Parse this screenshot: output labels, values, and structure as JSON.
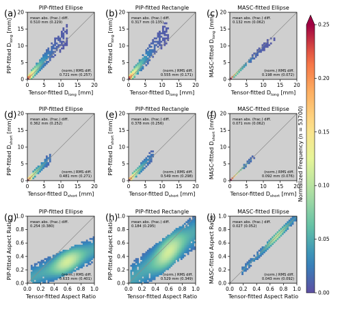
{
  "figure": {
    "colorbar": {
      "label": "Normalized Frequency (n = 53700)",
      "ticks": [
        0.0,
        0.05,
        0.1,
        0.15,
        0.2,
        0.25
      ],
      "tick_labels": [
        "0.00",
        "0.05",
        "0.10",
        "0.15",
        "0.20",
        "0.25"
      ],
      "range": [
        0,
        0.25
      ],
      "colormap": "spectral_r"
    },
    "colors": {
      "panel_background": "#cfcfcf",
      "one_to_one_line": "#8a8a8a",
      "low_density": "#5e4fa2",
      "high_density": "#9e0142"
    }
  },
  "chart_data": [
    {
      "type": "heatmap",
      "letter": "(a)",
      "title": "PIP-fitted Ellipse",
      "xlabel": "Tensor-fitted D",
      "xlabel_sub": "long",
      "xlabel_unit": " [mm]",
      "ylabel": "PIP-fitted D",
      "ylabel_sub": "long",
      "ylabel_unit": " [mm]",
      "xlim": [
        0,
        20
      ],
      "ylim": [
        0,
        20
      ],
      "xticks": [
        0,
        5,
        10,
        15,
        20
      ],
      "yticks": [
        0,
        5,
        10,
        15,
        20
      ],
      "stats_top_label": "mean abs. (frac.) diff.",
      "stats_top_value": "0.510 mm (0.229)",
      "stats_bottom_label": "(norm.) RMS diff.",
      "stats_bottom_value": "0.721 mm (0.257)",
      "density": {
        "center": [
          [
            0,
            0
          ],
          [
            10,
            12
          ]
        ],
        "spread": 1.8,
        "slope": 1.15
      }
    },
    {
      "type": "heatmap",
      "letter": "(b)",
      "title": "PIP-fitted Rectangle",
      "xlabel": "Tensor-fitted D",
      "xlabel_sub": "long",
      "xlabel_unit": " [mm]",
      "ylabel": "PIP-fitted D",
      "ylabel_sub": "long",
      "ylabel_unit": " [mm]",
      "xlim": [
        0,
        20
      ],
      "ylim": [
        0,
        20
      ],
      "xticks": [
        0,
        5,
        10,
        15,
        20
      ],
      "yticks": [
        0,
        5,
        10,
        15,
        20
      ],
      "stats_top_label": "mean abs. (frac.) diff.",
      "stats_top_value": "0.317 mm (0.135)",
      "stats_bottom_label": "(norm.) RMS diff.",
      "stats_bottom_value": "0.555 mm (0.171)",
      "density": {
        "center": [
          [
            0,
            0
          ],
          [
            10,
            13
          ]
        ],
        "spread": 1.9,
        "slope": 1.25
      }
    },
    {
      "type": "heatmap",
      "letter": "(c)",
      "title": "MASC-fitted Ellipse",
      "xlabel": "Tensor-fitted D",
      "xlabel_sub": "long",
      "xlabel_unit": " [mm]",
      "ylabel": "MASC-fitted D",
      "ylabel_sub": "long",
      "ylabel_unit": " [mm]",
      "xlim": [
        0,
        20
      ],
      "ylim": [
        0,
        20
      ],
      "xticks": [
        0,
        5,
        10,
        15,
        20
      ],
      "yticks": [
        0,
        5,
        10,
        15,
        20
      ],
      "stats_top_label": "mean abs. (frac.) diff.",
      "stats_top_value": "0.132 mm (0.062)",
      "stats_bottom_label": "(norm.) RMS diff.",
      "stats_bottom_value": "0.198 mm (0.072)",
      "density": {
        "center": [
          [
            0,
            0
          ],
          [
            13,
            12
          ]
        ],
        "spread": 0.6,
        "slope": 0.95
      }
    },
    {
      "type": "heatmap",
      "letter": "(d)",
      "title": "PIP-fitted Ellipse",
      "xlabel": "Tensor-fitted D",
      "xlabel_sub": "short",
      "xlabel_unit": " [mm]",
      "ylabel": "PIP-fitted D",
      "ylabel_sub": "short",
      "ylabel_unit": " [mm]",
      "xlim": [
        0,
        20
      ],
      "ylim": [
        0,
        20
      ],
      "xticks": [
        0,
        5,
        10,
        15,
        20
      ],
      "yticks": [
        0,
        5,
        10,
        15,
        20
      ],
      "stats_top_label": "mean abs. (frac.) diff.",
      "stats_top_value": "0.362 mm (0.252)",
      "stats_bottom_label": "(norm.) RMS diff.",
      "stats_bottom_value": "0.481 mm (0.271)",
      "density": {
        "center": [
          [
            0,
            0
          ],
          [
            6,
            6
          ]
        ],
        "spread": 1.2,
        "slope": 1.0
      }
    },
    {
      "type": "heatmap",
      "letter": "(e)",
      "title": "PIP-fitted Rectangle",
      "xlabel": "Tensor-fitted D",
      "xlabel_sub": "short",
      "xlabel_unit": " [mm]",
      "ylabel": "PIP-fitted D",
      "ylabel_sub": "short",
      "ylabel_unit": " [mm]",
      "xlim": [
        0,
        20
      ],
      "ylim": [
        0,
        20
      ],
      "xticks": [
        0,
        5,
        10,
        15,
        20
      ],
      "yticks": [
        0,
        5,
        10,
        15,
        20
      ],
      "stats_top_label": "mean abs. (frac.) diff.",
      "stats_top_value": "0.378 mm (0.256)",
      "stats_bottom_label": "(norm.) RMS diff.",
      "stats_bottom_value": "0.549 mm (0.298)",
      "density": {
        "center": [
          [
            0,
            0
          ],
          [
            6,
            6.5
          ]
        ],
        "spread": 1.3,
        "slope": 1.05
      }
    },
    {
      "type": "heatmap",
      "letter": "(f)",
      "title": "MASC-fitted Ellipse",
      "xlabel": "Tensor-fitted D",
      "xlabel_sub": "short",
      "xlabel_unit": " [mm]",
      "ylabel": "MASC-fitted D",
      "ylabel_sub": "short",
      "ylabel_unit": " [mm]",
      "xlim": [
        0,
        20
      ],
      "ylim": [
        0,
        20
      ],
      "xticks": [
        0,
        5,
        10,
        15,
        20
      ],
      "yticks": [
        0,
        5,
        10,
        15,
        20
      ],
      "stats_top_label": "mean abs. (frac.) diff.",
      "stats_top_value": "0.071 mm (0.062)",
      "stats_bottom_label": "(norm.) RMS diff.",
      "stats_bottom_value": "0.092 mm (0.076)",
      "density": {
        "center": [
          [
            0,
            0
          ],
          [
            7,
            7
          ]
        ],
        "spread": 0.45,
        "slope": 1.0
      }
    },
    {
      "type": "heatmap",
      "letter": "(g)",
      "title": "PIP-fitted Ellipse",
      "xlabel": "Tensor-fitted Aspect Ratio",
      "xlabel_sub": "",
      "xlabel_unit": "",
      "ylabel": "PIP-fitted Aspect Ratio",
      "ylabel_sub": "",
      "ylabel_unit": "",
      "xlim": [
        0,
        1
      ],
      "ylim": [
        0,
        1
      ],
      "xticks": [
        0.0,
        0.2,
        0.4,
        0.6,
        0.8,
        1.0
      ],
      "yticks": [
        0.0,
        0.2,
        0.4,
        0.6,
        0.8,
        1.0
      ],
      "stats_top_label": "mean abs. (frac.) diff.",
      "stats_top_value": "0.254 (0.380)",
      "stats_bottom_label": "(norm.) RMS diff.",
      "stats_bottom_value": "0.633 mm (0.401)",
      "density": {
        "center": [
          [
            0.1,
            0.1
          ],
          [
            1.0,
            0.5
          ]
        ],
        "spread": 0.12,
        "slope": 0.45
      }
    },
    {
      "type": "heatmap",
      "letter": "(h)",
      "title": "PIP-fitted Rectangle",
      "xlabel": "Tensor-fitted Aspect Ratio",
      "xlabel_sub": "",
      "xlabel_unit": "",
      "ylabel": "PIP-fitted Aspect Ratio",
      "ylabel_sub": "",
      "ylabel_unit": "",
      "xlim": [
        0,
        1
      ],
      "ylim": [
        0,
        1
      ],
      "xticks": [
        0.0,
        0.2,
        0.4,
        0.6,
        0.8,
        1.0
      ],
      "yticks": [
        0.0,
        0.2,
        0.4,
        0.6,
        0.8,
        1.0
      ],
      "stats_top_label": "mean abs. (frac.) diff.",
      "stats_top_value": "0.184 (0.295)",
      "stats_bottom_label": "(norm.) RMS diff.",
      "stats_bottom_value": "0.529 mm (0.349)",
      "density": {
        "center": [
          [
            0.1,
            0.1
          ],
          [
            1.0,
            0.8
          ]
        ],
        "spread": 0.16,
        "slope": 0.75
      }
    },
    {
      "type": "heatmap",
      "letter": "(i)",
      "title": "MASC-fitted Ellipse",
      "xlabel": "Tensor-fitted Aspect Ratio",
      "xlabel_sub": "",
      "xlabel_unit": "",
      "ylabel": "MASC-fitted Aspect Ratio",
      "ylabel_sub": "",
      "ylabel_unit": "",
      "xlim": [
        0,
        1
      ],
      "ylim": [
        0,
        1
      ],
      "xticks": [
        0.0,
        0.2,
        0.4,
        0.6,
        0.8,
        1.0
      ],
      "yticks": [
        0.0,
        0.2,
        0.4,
        0.6,
        0.8,
        1.0
      ],
      "stats_top_label": "mean abs. (frac.) diff.",
      "stats_top_value": "0.027 (0.052)",
      "stats_bottom_label": "(norm.) RMS diff.",
      "stats_bottom_value": "0.043 mm (0.092)",
      "density": {
        "center": [
          [
            0.2,
            0.2
          ],
          [
            1.0,
            1.0
          ]
        ],
        "spread": 0.04,
        "slope": 1.0
      }
    }
  ]
}
